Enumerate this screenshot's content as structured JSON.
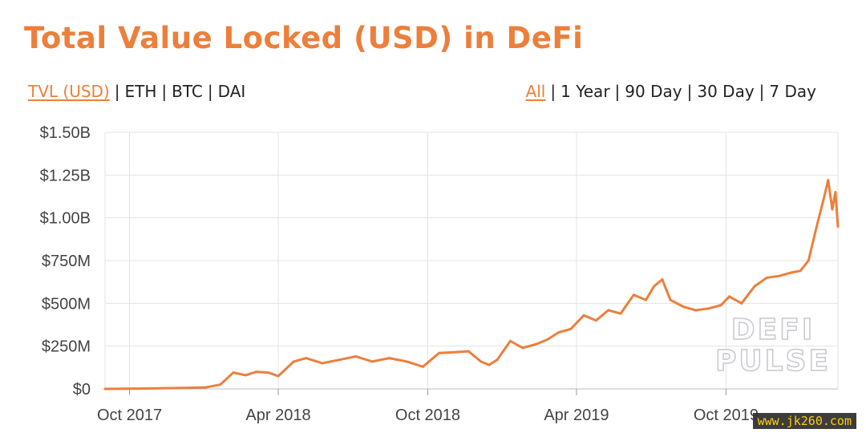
{
  "title": "Total Value Locked (USD) in DeFi",
  "metric_tabs": [
    {
      "label": "TVL (USD)",
      "active": true
    },
    {
      "label": "ETH",
      "active": false
    },
    {
      "label": "BTC",
      "active": false
    },
    {
      "label": "DAI",
      "active": false
    }
  ],
  "range_tabs": [
    {
      "label": "All",
      "active": true
    },
    {
      "label": "1 Year",
      "active": false
    },
    {
      "label": "90 Day",
      "active": false
    },
    {
      "label": "30 Day",
      "active": false
    },
    {
      "label": "7 Day",
      "active": false
    }
  ],
  "separator": "|",
  "watermark": {
    "line1": "DEFI",
    "line2": "PULSE"
  },
  "corner_watermark": "www.jk260.com",
  "colors": {
    "accent": "#ec7f3c",
    "line": "#ec7f3c",
    "grid": "#e3e3e3"
  },
  "chart_data": {
    "type": "line",
    "title": "Total Value Locked (USD) in DeFi",
    "xlabel": "",
    "ylabel": "",
    "x_type": "date",
    "xlim": [
      "2017-09-01",
      "2020-02-15"
    ],
    "ylim": [
      0,
      1500000000
    ],
    "y_ticks": [
      {
        "value": 0,
        "label": "$0"
      },
      {
        "value": 250000000,
        "label": "$250M"
      },
      {
        "value": 500000000,
        "label": "$500M"
      },
      {
        "value": 750000000,
        "label": "$750M"
      },
      {
        "value": 1000000000,
        "label": "$1.00B"
      },
      {
        "value": 1250000000,
        "label": "$1.25B"
      },
      {
        "value": 1500000000,
        "label": "$1.50B"
      }
    ],
    "x_ticks": [
      {
        "value": "2017-10-01",
        "label": "Oct 2017"
      },
      {
        "value": "2018-04-01",
        "label": "Apr 2018"
      },
      {
        "value": "2018-10-01",
        "label": "Oct 2018"
      },
      {
        "value": "2019-04-01",
        "label": "Apr 2019"
      },
      {
        "value": "2019-10-01",
        "label": "Oct 2019"
      }
    ],
    "grid": true,
    "series": [
      {
        "x": [
          "2017-09-01",
          "2017-10-15",
          "2017-12-01",
          "2018-01-01",
          "2018-01-20",
          "2018-02-05",
          "2018-02-20",
          "2018-03-05",
          "2018-03-20",
          "2018-04-01",
          "2018-04-20",
          "2018-05-05",
          "2018-05-25",
          "2018-06-15",
          "2018-07-05",
          "2018-07-25",
          "2018-08-15",
          "2018-09-05",
          "2018-09-25",
          "2018-10-15",
          "2018-11-05",
          "2018-11-20",
          "2018-12-05",
          "2018-12-15",
          "2018-12-25",
          "2019-01-10",
          "2019-01-25",
          "2019-02-10",
          "2019-02-25",
          "2019-03-10",
          "2019-03-25",
          "2019-04-10",
          "2019-04-25",
          "2019-05-10",
          "2019-05-25",
          "2019-06-10",
          "2019-06-25",
          "2019-07-05",
          "2019-07-15",
          "2019-07-25",
          "2019-08-10",
          "2019-08-25",
          "2019-09-10",
          "2019-09-25",
          "2019-10-05",
          "2019-10-20",
          "2019-11-05",
          "2019-11-20",
          "2019-12-05",
          "2019-12-20",
          "2019-12-31",
          "2020-01-10",
          "2020-01-20",
          "2020-01-28",
          "2020-02-03",
          "2020-02-08",
          "2020-02-12",
          "2020-02-15"
        ],
        "y": [
          0,
          2000000,
          5000000,
          8000000,
          25000000,
          95000000,
          80000000,
          100000000,
          95000000,
          75000000,
          160000000,
          180000000,
          150000000,
          170000000,
          190000000,
          160000000,
          180000000,
          160000000,
          130000000,
          210000000,
          215000000,
          220000000,
          160000000,
          140000000,
          170000000,
          280000000,
          240000000,
          260000000,
          290000000,
          330000000,
          350000000,
          430000000,
          400000000,
          460000000,
          440000000,
          550000000,
          520000000,
          600000000,
          640000000,
          520000000,
          480000000,
          460000000,
          470000000,
          490000000,
          540000000,
          500000000,
          600000000,
          650000000,
          660000000,
          680000000,
          690000000,
          750000000,
          950000000,
          1100000000,
          1220000000,
          1050000000,
          1150000000,
          950000000
        ]
      }
    ]
  }
}
